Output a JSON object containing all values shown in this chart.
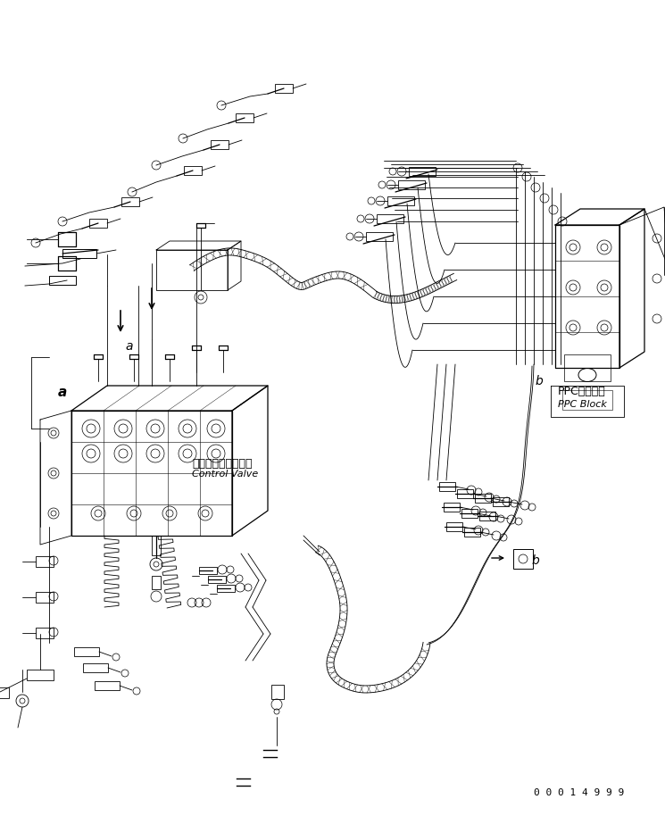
{
  "bg_color": "#ffffff",
  "line_color": "#000000",
  "fig_width": 7.45,
  "fig_height": 9.14,
  "dpi": 100,
  "labels": {
    "control_valve_jp": "コントロールバルブ",
    "control_valve_en": "Control Valve",
    "ppc_block_jp": "PPCブロック",
    "ppc_block_en": "PPC Block",
    "label_a_upper": "a",
    "label_a_lower": "a",
    "label_b_upper": "b",
    "label_b_lower": "b",
    "part_number": "0 0 0 1 4 9 9 9"
  }
}
